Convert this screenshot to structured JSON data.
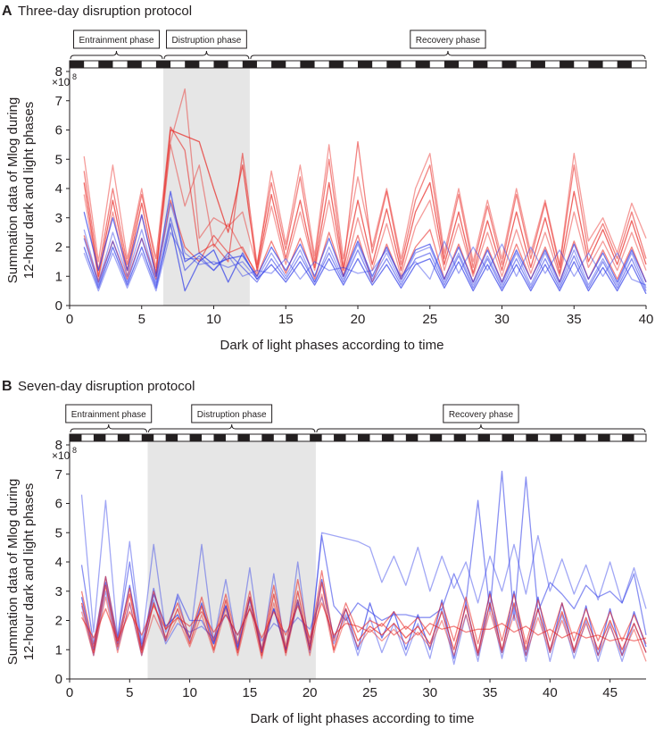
{
  "chart_data": [
    {
      "panel": "A",
      "type": "line",
      "title": "Three-day disruption protocol",
      "xlabel": "Dark of light phases according to time",
      "ylabel_line1": "Summation data of Mlog during",
      "ylabel_line2": "12-hour dark and light phases",
      "y_multiplier": "×10",
      "y_multiplier_exp": "8",
      "xlim": [
        0,
        40
      ],
      "ylim": [
        0,
        8
      ],
      "xticks": [
        0,
        5,
        10,
        15,
        20,
        25,
        30,
        35,
        40
      ],
      "yticks": [
        0,
        1,
        2,
        3,
        4,
        5,
        6,
        7,
        8
      ],
      "n_phases": 40,
      "phases": [
        {
          "label": "Entrainment phase",
          "start": 0,
          "end": 6.5
        },
        {
          "label": "Distruption phase",
          "start": 6.5,
          "end": 12.5
        },
        {
          "label": "Recovery phase",
          "start": 12.5,
          "end": 40
        }
      ],
      "shaded_region": [
        6.5,
        12.5
      ],
      "colors": {
        "red": "#e8231f",
        "blue": "#2f3ce8",
        "shade": "#e6e6e6"
      },
      "series": [
        {
          "color": "red",
          "values": [
            5.1,
            1.5,
            4.8,
            1.6,
            4.0,
            1.3,
            5.6,
            7.4,
            2.3,
            3.0,
            2.7,
            3.2,
            1.3,
            4.6,
            2.1,
            4.8,
            1.7,
            5.5,
            1.6,
            4.4,
            2.0,
            4.0,
            1.6,
            4.0,
            5.2,
            1.8,
            4.0,
            1.5,
            3.6,
            1.6,
            4.0,
            1.8,
            3.6,
            1.4,
            5.2,
            2.2,
            3.0,
            1.8,
            3.5,
            2.3
          ]
        },
        {
          "color": "red",
          "values": [
            4.6,
            1.2,
            4.0,
            1.4,
            3.8,
            1.6,
            6.1,
            5.3,
            1.8,
            2.1,
            1.5,
            5.2,
            1.4,
            4.2,
            1.9,
            4.4,
            1.5,
            5.0,
            1.3,
            5.6,
            1.8,
            3.9,
            1.4,
            3.6,
            4.8,
            1.6,
            3.8,
            1.3,
            3.4,
            1.4,
            3.8,
            1.6,
            3.5,
            1.3,
            4.8,
            1.8,
            2.8,
            1.6,
            3.2,
            1.6
          ]
        },
        {
          "color": "red",
          "values": [
            4.2,
            1.0,
            3.6,
            1.2,
            3.5,
            1.1,
            6.0,
            5.8,
            5.6,
            4.0,
            2.5,
            4.8,
            1.2,
            3.8,
            1.6,
            3.6,
            1.3,
            4.2,
            1.2,
            3.6,
            1.4,
            3.3,
            1.2,
            3.2,
            4.2,
            1.4,
            3.2,
            1.1,
            2.9,
            1.2,
            3.2,
            1.3,
            3.0,
            1.1,
            3.9,
            1.5,
            2.6,
            1.4,
            2.9,
            1.4
          ]
        },
        {
          "color": "red",
          "values": [
            3.8,
            0.9,
            3.2,
            1.0,
            3.1,
            1.0,
            5.5,
            3.4,
            4.8,
            2.0,
            2.8,
            1.9,
            1.1,
            3.4,
            1.4,
            3.2,
            1.2,
            3.6,
            1.0,
            3.0,
            1.2,
            2.8,
            1.0,
            2.7,
            3.6,
            1.2,
            2.8,
            1.0,
            2.5,
            1.0,
            2.6,
            1.1,
            2.5,
            1.0,
            3.2,
            1.3,
            2.2,
            1.2,
            2.5,
            1.2
          ]
        },
        {
          "color": "red",
          "values": [
            2.4,
            0.8,
            2.2,
            0.9,
            2.3,
            0.9,
            3.6,
            2.0,
            1.5,
            2.4,
            1.8,
            2.0,
            1.0,
            2.2,
            1.1,
            2.3,
            0.9,
            2.5,
            1.0,
            2.4,
            0.8,
            2.1,
            0.9,
            2.0,
            2.6,
            0.9,
            2.1,
            0.8,
            2.0,
            0.8,
            2.1,
            0.9,
            2.0,
            0.8,
            2.2,
            0.9,
            1.9,
            0.9,
            2.0,
            0.8
          ]
        },
        {
          "color": "blue",
          "values": [
            3.2,
            1.2,
            3.0,
            1.2,
            3.1,
            1.0,
            3.9,
            1.5,
            1.8,
            1.4,
            1.6,
            1.7,
            1.0,
            2.0,
            1.2,
            2.1,
            1.0,
            2.3,
            1.0,
            2.2,
            1.0,
            2.0,
            0.9,
            1.9,
            2.1,
            0.9,
            2.0,
            0.8,
            1.9,
            0.8,
            1.9,
            0.9,
            1.9,
            0.8,
            2.1,
            0.9,
            1.8,
            0.8,
            1.9,
            0.8
          ]
        },
        {
          "color": "blue",
          "values": [
            2.6,
            0.8,
            2.5,
            1.0,
            2.6,
            0.8,
            3.5,
            1.8,
            1.4,
            1.5,
            1.3,
            1.5,
            0.9,
            1.8,
            1.0,
            1.9,
            0.8,
            2.0,
            0.9,
            2.1,
            0.9,
            1.8,
            0.8,
            1.8,
            2.0,
            0.8,
            1.8,
            0.7,
            1.7,
            0.7,
            1.8,
            0.7,
            1.8,
            0.7,
            1.9,
            0.7,
            1.6,
            0.7,
            1.8,
            0.6
          ]
        },
        {
          "color": "blue",
          "values": [
            2.3,
            0.7,
            2.2,
            0.8,
            2.3,
            0.7,
            3.0,
            1.2,
            1.7,
            1.2,
            1.8,
            1.3,
            0.8,
            1.6,
            0.9,
            1.7,
            0.8,
            1.8,
            0.8,
            1.9,
            0.8,
            1.6,
            0.7,
            1.6,
            1.8,
            0.7,
            1.7,
            0.6,
            1.6,
            0.6,
            1.6,
            0.6,
            1.6,
            0.6,
            1.7,
            0.6,
            1.5,
            0.6,
            1.6,
            0.5
          ]
        },
        {
          "color": "blue",
          "values": [
            2.0,
            0.6,
            2.0,
            0.7,
            2.0,
            0.6,
            2.8,
            0.5,
            1.5,
            1.9,
            0.8,
            1.8,
            0.9,
            1.4,
            0.8,
            1.5,
            0.7,
            1.6,
            0.7,
            1.6,
            0.7,
            1.4,
            0.6,
            1.4,
            1.6,
            0.6,
            1.5,
            0.5,
            1.4,
            0.5,
            1.4,
            0.5,
            1.4,
            0.5,
            1.5,
            0.5,
            1.3,
            0.5,
            1.4,
            0.4
          ]
        },
        {
          "color": "blue",
          "values": [
            1.8,
            0.5,
            1.8,
            0.6,
            1.8,
            0.5,
            2.5,
            1.6,
            1.6,
            1.2,
            1.7,
            1.0,
            1.2,
            1.1,
            1.6,
            0.9,
            1.5,
            1.2,
            1.3,
            1.1,
            1.2,
            1.9,
            1.0,
            1.5,
            0.9,
            2.2,
            1.1,
            2.0,
            1.2,
            2.1,
            1.0,
            2.0,
            1.1,
            1.9,
            1.0,
            1.8,
            1.0,
            1.8,
            0.9,
            0.7
          ]
        }
      ]
    },
    {
      "panel": "B",
      "type": "line",
      "title": "Seven-day disruption protocol",
      "xlabel": "Dark of light phases according to time",
      "ylabel_line1": "Summation data of Mlog during",
      "ylabel_line2": "12-hour dark and light phases",
      "y_multiplier": "×10",
      "y_multiplier_exp": "8",
      "xlim": [
        0,
        48
      ],
      "ylim": [
        0,
        8
      ],
      "xticks": [
        0,
        5,
        10,
        15,
        20,
        25,
        30,
        35,
        40,
        45
      ],
      "yticks": [
        0,
        1,
        2,
        3,
        4,
        5,
        6,
        7,
        8
      ],
      "n_phases": 48,
      "phases": [
        {
          "label": "Entrainment phase",
          "start": 0,
          "end": 6.5
        },
        {
          "label": "Distruption phase",
          "start": 6.5,
          "end": 20.5
        },
        {
          "label": "Recovery phase",
          "start": 20.5,
          "end": 48
        }
      ],
      "shaded_region": [
        6.5,
        20.5
      ],
      "colors": {
        "red": "#e8231f",
        "blue": "#2f3ce8",
        "shade": "#e6e6e6"
      },
      "series": [
        {
          "color": "blue",
          "values": [
            6.3,
            1.6,
            6.1,
            1.4,
            4.7,
            1.2,
            4.6,
            1.6,
            2.8,
            1.3,
            4.6,
            1.3,
            3.4,
            1.1,
            3.8,
            0.9,
            3.6,
            0.9,
            4.0,
            0.9,
            5.0,
            4.9,
            4.8,
            4.7,
            4.5,
            3.3,
            4.2,
            3.2,
            4.5,
            3.0,
            4.2,
            3.1,
            4.0,
            2.6,
            4.2,
            3.0,
            4.6,
            2.9,
            4.9,
            3.0,
            4.1,
            2.9,
            3.9,
            2.7,
            4.0,
            2.6,
            3.8,
            2.4
          ]
        },
        {
          "color": "blue",
          "values": [
            3.9,
            1.2,
            3.5,
            1.4,
            4.0,
            1.1,
            3.1,
            1.3,
            2.9,
            2.0,
            2.0,
            1.2,
            2.5,
            1.1,
            2.7,
            1.0,
            2.4,
            1.0,
            2.6,
            1.1,
            4.9,
            2.5,
            2.0,
            2.6,
            2.3,
            2.0,
            2.2,
            2.2,
            2.1,
            2.1,
            2.4,
            3.6,
            2.6,
            6.1,
            2.3,
            7.1,
            2.0,
            6.9,
            2.3,
            3.3,
            2.9,
            2.4,
            3.2,
            2.8,
            3.0,
            2.6,
            3.6,
            1.5
          ]
        },
        {
          "color": "blue",
          "values": [
            2.8,
            1.0,
            3.3,
            1.2,
            3.2,
            1.0,
            2.9,
            1.8,
            2.2,
            1.4,
            2.6,
            1.2,
            2.5,
            1.0,
            2.8,
            0.9,
            2.4,
            1.0,
            2.7,
            1.0,
            3.4,
            1.4,
            2.4,
            1.0,
            2.6,
            1.4,
            2.3,
            1.0,
            2.2,
            1.0,
            2.7,
            0.7,
            2.6,
            0.8,
            3.0,
            0.9,
            3.0,
            0.8,
            2.8,
            0.9,
            2.6,
            0.9,
            2.5,
            0.8,
            2.4,
            0.8,
            2.3,
            1.1
          ]
        },
        {
          "color": "blue",
          "values": [
            2.5,
            0.8,
            3.0,
            1.0,
            2.6,
            0.8,
            2.7,
            1.2,
            1.9,
            1.6,
            1.8,
            1.4,
            2.2,
            1.5,
            2.4,
            1.3,
            1.9,
            1.6,
            2.1,
            1.7,
            2.8,
            1.2,
            2.2,
            0.8,
            2.1,
            0.9,
            1.9,
            0.8,
            1.9,
            0.7,
            2.4,
            0.5,
            2.2,
            0.6,
            2.6,
            0.7,
            2.5,
            0.6,
            2.4,
            0.6,
            2.2,
            0.7,
            2.0,
            0.6,
            1.9,
            0.6,
            1.9,
            0.9
          ]
        },
        {
          "color": "red",
          "values": [
            3.0,
            1.1,
            3.5,
            1.3,
            3.1,
            1.0,
            3.0,
            1.7,
            2.6,
            1.4,
            2.8,
            1.3,
            2.9,
            1.2,
            3.0,
            1.0,
            3.2,
            1.1,
            3.4,
            1.2,
            3.7,
            1.3,
            2.6,
            1.6,
            2.0,
            1.8,
            2.3,
            1.7,
            2.1,
            1.5,
            2.6,
            1.3,
            2.8,
            1.2,
            2.9,
            1.3,
            2.9,
            1.2,
            2.7,
            1.3,
            2.6,
            1.3,
            2.4,
            1.3,
            2.3,
            1.3,
            2.2,
            1.2
          ]
        },
        {
          "color": "red",
          "values": [
            2.6,
            0.9,
            3.2,
            1.1,
            2.9,
            0.9,
            2.6,
            1.4,
            2.4,
            1.2,
            2.5,
            1.0,
            2.7,
            0.9,
            2.8,
            0.8,
            2.9,
            0.9,
            3.0,
            1.0,
            3.3,
            1.0,
            2.4,
            1.3,
            1.8,
            1.5,
            1.9,
            1.4,
            1.8,
            1.2,
            2.3,
            1.0,
            2.5,
            0.9,
            2.6,
            1.0,
            2.6,
            1.0,
            2.4,
            1.0,
            2.3,
            1.0,
            2.1,
            1.0,
            2.0,
            1.0,
            1.9,
            0.9
          ]
        },
        {
          "color": "red",
          "values": [
            2.3,
            0.8,
            2.8,
            0.9,
            2.6,
            0.8,
            2.2,
            1.3,
            2.1,
            1.1,
            2.2,
            0.9,
            2.4,
            0.8,
            2.5,
            0.7,
            2.6,
            0.8,
            2.7,
            0.8,
            2.9,
            0.9,
            2.1,
            1.1,
            1.7,
            1.3,
            1.7,
            1.2,
            1.6,
            1.1,
            2.0,
            0.8,
            2.2,
            0.8,
            2.3,
            0.9,
            2.2,
            0.8,
            2.1,
            0.9,
            2.0,
            0.9,
            1.9,
            0.8,
            1.8,
            0.8,
            1.7,
            0.6
          ]
        },
        {
          "color": "red",
          "values": [
            2.1,
            1.4,
            2.4,
            1.3,
            2.3,
            1.5,
            2.5,
            1.7,
            2.1,
            1.8,
            2.3,
            1.6,
            2.2,
            1.5,
            2.4,
            1.4,
            2.3,
            1.5,
            2.5,
            1.4,
            2.6,
            1.5,
            1.9,
            1.8,
            1.6,
            1.9,
            1.5,
            1.8,
            1.5,
            1.9,
            1.7,
            1.8,
            1.6,
            1.7,
            1.7,
            1.9,
            1.6,
            1.8,
            1.5,
            1.7,
            1.4,
            1.6,
            1.4,
            1.5,
            1.3,
            1.4,
            1.3,
            1.4
          ]
        }
      ]
    }
  ]
}
